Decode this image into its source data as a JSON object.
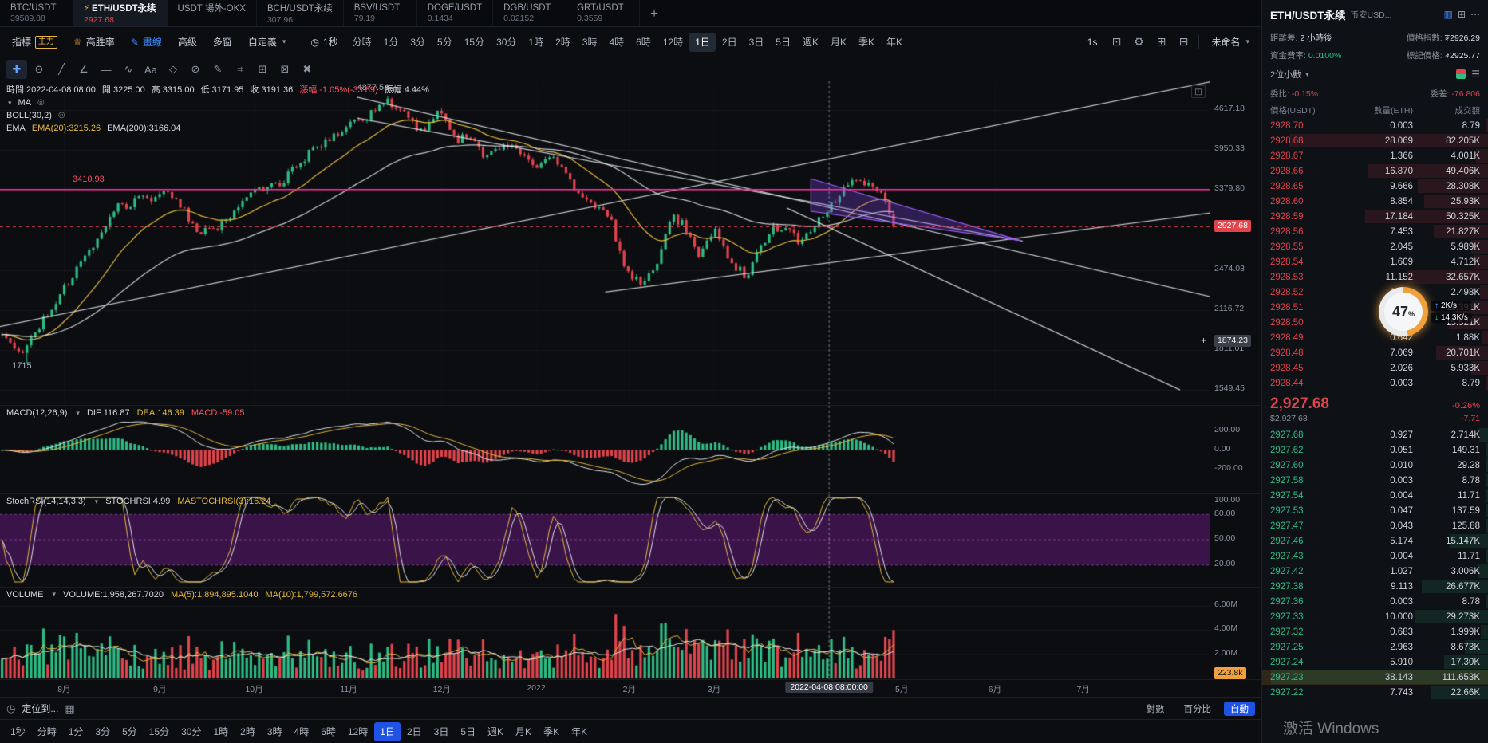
{
  "tab_bar": {
    "tabs": [
      {
        "pair": "BTC/USDT",
        "price": "39589.88",
        "active": false
      },
      {
        "pair": "ETH/USDT永续",
        "price": "2927.68",
        "active": true
      },
      {
        "pair": "USDT 場外-OKX",
        "price": "",
        "active": false
      },
      {
        "pair": "BCH/USDT永续",
        "price": "307.96",
        "active": false
      },
      {
        "pair": "BSV/USDT",
        "price": "79.19",
        "active": false
      },
      {
        "pair": "DOGE/USDT",
        "price": "0.1434",
        "active": false
      },
      {
        "pair": "DGB/USDT",
        "price": "0.02152",
        "active": false
      },
      {
        "pair": "GRT/USDT",
        "price": "0.3559",
        "active": false
      }
    ],
    "add_button": "+"
  },
  "toolbar": {
    "indicator": "指標",
    "indicator_badge": "主力",
    "win_rate": "高胜率",
    "draw": "畫線",
    "advanced": "高級",
    "multi_window": "多窗",
    "custom": "自定義",
    "second": "1秒",
    "timeframes": [
      "分時",
      "1分",
      "3分",
      "5分",
      "15分",
      "30分",
      "1時",
      "2時",
      "3時",
      "4時",
      "6時",
      "12時",
      "1日",
      "2日",
      "3日",
      "5日",
      "週K",
      "月K",
      "季K",
      "年K"
    ],
    "active_timeframe": "1日",
    "resolution": "1s",
    "layout_name": "未命名"
  },
  "legend": {
    "ohlc": {
      "time": "時間:2022-04-08 08:00",
      "open": "開:3225.00",
      "high": "高:3315.00",
      "low": "低:3171.95",
      "close": "收:3191.36",
      "change": "漲幅:-1.05%(-33.89)",
      "amplitude": "振幅:4.44%"
    },
    "ma": "MA",
    "boll": "BOLL(30,2)",
    "ema": "EMA",
    "ema20": "EMA(20):3215.26",
    "ema200": "EMA(200):3166.04",
    "macd_name": "MACD(12,26,9)",
    "dif": "DIF:116.87",
    "dea": "DEA:146.39",
    "macd": "MACD:-59.05",
    "stoch_name": "StochRSI(14,14,3,3)",
    "stochrsi": "STOCHRSI:4.99",
    "mastochrsi": "MASTOCHRSI(3):16.24",
    "vol_name": "VOLUME",
    "volume": "VOLUME:1,958,267.7020",
    "vol_ma5": "MA(5):1,894,895.1040",
    "vol_ma10": "MA(10):1,799,572.6676"
  },
  "chart": {
    "type": "candlestick",
    "annotations": {
      "resistance": "3410.93",
      "peak": "4877.54",
      "trough": "1715"
    },
    "main_axis": [
      "4617.18",
      "3950.33",
      "3379.80",
      "2474.03",
      "2116.72",
      "1811.01",
      "1549.45"
    ],
    "current_price_label": "2927.68",
    "crosshair_price": "1874.23",
    "macd_axis": [
      "200.00",
      "0.00",
      "-200.00"
    ],
    "stoch_axis": [
      "100.00",
      "80.00",
      "50.00",
      "20.00"
    ],
    "vol_axis": [
      "6.00M",
      "4.00M",
      "2.00M"
    ],
    "vol_badge": "223.8k",
    "months": [
      "8月",
      "9月",
      "10月",
      "11月",
      "12月",
      "2022",
      "2月",
      "3月",
      "5月",
      "6月",
      "7月"
    ],
    "crosshair_time": "2022-04-08 08:00:00",
    "price_path": [
      [
        0,
        1920
      ],
      [
        0.02,
        1775
      ],
      [
        0.05,
        2080
      ],
      [
        0.09,
        2560
      ],
      [
        0.13,
        3160
      ],
      [
        0.16,
        3270
      ],
      [
        0.19,
        3340
      ],
      [
        0.22,
        2870
      ],
      [
        0.25,
        2960
      ],
      [
        0.28,
        3380
      ],
      [
        0.31,
        3430
      ],
      [
        0.345,
        3900
      ],
      [
        0.38,
        4280
      ],
      [
        0.41,
        4500
      ],
      [
        0.431,
        4800
      ],
      [
        0.45,
        4580
      ],
      [
        0.47,
        4240
      ],
      [
        0.49,
        4560
      ],
      [
        0.51,
        4080
      ],
      [
        0.525,
        4220
      ],
      [
        0.54,
        3840
      ],
      [
        0.56,
        4040
      ],
      [
        0.58,
        3960
      ],
      [
        0.6,
        3700
      ],
      [
        0.62,
        3820
      ],
      [
        0.645,
        3340
      ],
      [
        0.66,
        3190
      ],
      [
        0.68,
        3080
      ],
      [
        0.7,
        2480
      ],
      [
        0.717,
        2330
      ],
      [
        0.735,
        2560
      ],
      [
        0.75,
        3060
      ],
      [
        0.765,
        2940
      ],
      [
        0.78,
        2620
      ],
      [
        0.8,
        2890
      ],
      [
        0.815,
        2590
      ],
      [
        0.836,
        2390
      ],
      [
        0.85,
        2700
      ],
      [
        0.865,
        2940
      ],
      [
        0.88,
        2890
      ],
      [
        0.895,
        2760
      ],
      [
        0.91,
        2950
      ],
      [
        0.925,
        3100
      ],
      [
        0.945,
        3380
      ],
      [
        0.96,
        3520
      ],
      [
        0.975,
        3440
      ],
      [
        0.99,
        3270
      ],
      [
        1,
        2928
      ]
    ]
  },
  "bottom": {
    "locate": "定位到...",
    "scales": [
      "對數",
      "百分比",
      "自動"
    ],
    "active_scale": "自動",
    "timeframes": [
      "1秒",
      "分時",
      "1分",
      "3分",
      "5分",
      "15分",
      "30分",
      "1時",
      "2時",
      "3時",
      "4時",
      "6時",
      "12時",
      "1日",
      "2日",
      "3日",
      "5日",
      "週K",
      "月K",
      "季K",
      "年K"
    ],
    "active_timeframe": "1日"
  },
  "order_book": {
    "title": "ETH/USDT永续",
    "subtitle": "币安USD...",
    "info": {
      "distance_label": "距離差:",
      "distance": "2 小時後",
      "index_label": "價格指數:",
      "index": "₮2926.29",
      "funding_label": "資金費率:",
      "funding": "0.0100%",
      "mark_label": "標記價格:",
      "mark": "₮2925.77"
    },
    "precision": "2位小數",
    "ratio_label": "委比:",
    "ratio": "-0.15%",
    "delta_label": "委差:",
    "delta": "-76.806",
    "headers": [
      "價格(USDT)",
      "數量(ETH)",
      "成交額"
    ],
    "asks": [
      [
        "2928.70",
        "0.003",
        "8.79"
      ],
      [
        "2928.68",
        "28.069",
        "82.205K"
      ],
      [
        "2928.67",
        "1.366",
        "4.001K"
      ],
      [
        "2928.66",
        "16.870",
        "49.406K"
      ],
      [
        "2928.65",
        "9.666",
        "28.308K"
      ],
      [
        "2928.60",
        "8.854",
        "25.93K"
      ],
      [
        "2928.59",
        "17.184",
        "50.325K"
      ],
      [
        "2928.56",
        "7.453",
        "21.827K"
      ],
      [
        "2928.55",
        "2.045",
        "5.989K"
      ],
      [
        "2928.54",
        "1.609",
        "4.712K"
      ],
      [
        "2928.53",
        "11.152",
        "32.657K"
      ],
      [
        "2928.52",
        "0.853",
        "2.498K"
      ],
      [
        "2928.51",
        "4.231",
        "12.391K"
      ],
      [
        "2928.50",
        "5.300",
        "15.521K"
      ],
      [
        "2928.49",
        "0.642",
        "1.88K"
      ],
      [
        "2928.48",
        "7.069",
        "20.701K"
      ],
      [
        "2928.45",
        "2.026",
        "5.933K"
      ],
      [
        "2928.44",
        "0.003",
        "8.79"
      ]
    ],
    "ticker": {
      "price": "2,927.68",
      "change_pct": "-0.26%",
      "usd": "$2,927.68",
      "change": "-7.71"
    },
    "bids": [
      [
        "2927.68",
        "0.927",
        "2.714K"
      ],
      [
        "2927.62",
        "0.051",
        "149.31"
      ],
      [
        "2927.60",
        "0.010",
        "29.28"
      ],
      [
        "2927.58",
        "0.003",
        "8.78"
      ],
      [
        "2927.54",
        "0.004",
        "11.71"
      ],
      [
        "2927.53",
        "0.047",
        "137.59"
      ],
      [
        "2927.47",
        "0.043",
        "125.88"
      ],
      [
        "2927.46",
        "5.174",
        "15.147K"
      ],
      [
        "2927.43",
        "0.004",
        "11.71"
      ],
      [
        "2927.42",
        "1.027",
        "3.006K"
      ],
      [
        "2927.38",
        "9.113",
        "26.677K"
      ],
      [
        "2927.36",
        "0.003",
        "8.78"
      ],
      [
        "2927.33",
        "10.000",
        "29.273K"
      ],
      [
        "2927.32",
        "0.683",
        "1.999K"
      ],
      [
        "2927.25",
        "2.963",
        "8.673K"
      ],
      [
        "2927.24",
        "5.910",
        "17.30K"
      ],
      [
        "2927.23",
        "38.143",
        "111.653K",
        "hl"
      ],
      [
        "2927.22",
        "7.743",
        "22.66K"
      ]
    ]
  },
  "net_overlay": {
    "percent": "47",
    "unit": "%",
    "up": "2K/s",
    "down": "14.3K/s"
  },
  "watermark": "激活 Windows",
  "draw_tools": [
    {
      "name": "cursor",
      "glyph": "✚"
    },
    {
      "name": "magnet",
      "glyph": "⊙"
    },
    {
      "name": "trend-line",
      "glyph": "╱"
    },
    {
      "name": "angle-line",
      "glyph": "∠"
    },
    {
      "name": "horizontal-line",
      "glyph": "―"
    },
    {
      "name": "wave",
      "glyph": "∿"
    },
    {
      "name": "text",
      "glyph": "Aa"
    },
    {
      "name": "shape",
      "glyph": "◇"
    },
    {
      "name": "circle-slash",
      "glyph": "⊘"
    },
    {
      "name": "pencil",
      "glyph": "✎"
    },
    {
      "name": "ruler",
      "glyph": "⌗"
    },
    {
      "name": "grid",
      "glyph": "⊞"
    },
    {
      "name": "lock",
      "glyph": "⊠"
    },
    {
      "name": "delete",
      "glyph": "✖"
    }
  ]
}
